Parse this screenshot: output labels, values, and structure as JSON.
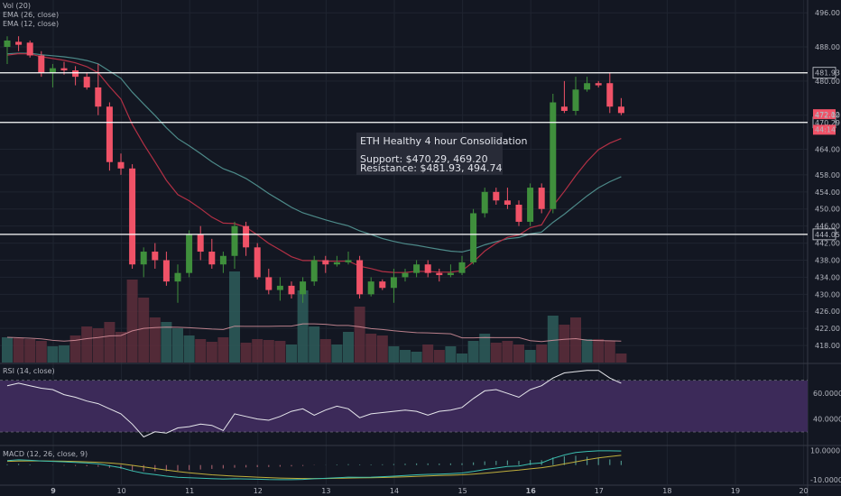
{
  "chart_data": {
    "type": "candlestick",
    "main": {
      "indicator_labels": [
        "Vol (20)",
        "EMA (26, close)",
        "EMA (12, close)"
      ],
      "y_ticks": [
        496.0,
        488.0,
        480.0,
        472.0,
        464.0,
        458.0,
        454.0,
        450.0,
        446.0,
        442.0,
        438.0,
        434.0,
        430.0,
        426.0,
        422.0,
        418.0
      ],
      "ylim": [
        414,
        499
      ],
      "up_color": "#3f8f3c",
      "down_color": "#f05267",
      "levels": [
        {
          "value": 481.93,
          "label": "481.93"
        },
        {
          "value": 470.29,
          "label": "470.29"
        },
        {
          "value": 444.05,
          "label": "444.05"
        }
      ],
      "price_tags": [
        {
          "value": 472.12,
          "label": "472.12",
          "color": "#f05267"
        },
        {
          "value": 470.8,
          "label": "44:14",
          "color": "#f05267"
        }
      ],
      "annotation": {
        "title": "ETH Healthy 4 hour Consolidation",
        "lines": [
          "Support: $470.29, 469.20",
          "Resistance: $481.93, 494.74"
        ]
      },
      "candles": [
        {
          "o": 488.0,
          "h": 490.5,
          "l": 484.0,
          "c": 489.5
        },
        {
          "o": 489.2,
          "h": 490.5,
          "l": 487.0,
          "c": 488.5
        },
        {
          "o": 489.0,
          "h": 489.5,
          "l": 485.5,
          "c": 486.0
        },
        {
          "o": 486.0,
          "h": 487.0,
          "l": 481.0,
          "c": 482.0
        },
        {
          "o": 482.0,
          "h": 484.0,
          "l": 478.5,
          "c": 483.0
        },
        {
          "o": 483.0,
          "h": 484.5,
          "l": 481.5,
          "c": 482.5
        },
        {
          "o": 482.5,
          "h": 483.5,
          "l": 479.0,
          "c": 481.0
        },
        {
          "o": 481.0,
          "h": 482.0,
          "l": 478.0,
          "c": 478.5
        },
        {
          "o": 478.5,
          "h": 484.0,
          "l": 472.0,
          "c": 474.0
        },
        {
          "o": 474.0,
          "h": 475.0,
          "l": 459.0,
          "c": 461.0
        },
        {
          "o": 461.0,
          "h": 463.0,
          "l": 458.0,
          "c": 459.5
        },
        {
          "o": 459.5,
          "h": 460.5,
          "l": 436.0,
          "c": 437.0
        },
        {
          "o": 437.0,
          "h": 441.0,
          "l": 434.0,
          "c": 440.0
        },
        {
          "o": 440.0,
          "h": 442.0,
          "l": 436.0,
          "c": 438.0
        },
        {
          "o": 438.0,
          "h": 440.0,
          "l": 432.0,
          "c": 433.0
        },
        {
          "o": 433.0,
          "h": 437.0,
          "l": 428.0,
          "c": 435.0
        },
        {
          "o": 435.0,
          "h": 445.0,
          "l": 434.0,
          "c": 444.0
        },
        {
          "o": 444.0,
          "h": 446.0,
          "l": 438.0,
          "c": 440.0
        },
        {
          "o": 440.0,
          "h": 443.0,
          "l": 436.0,
          "c": 437.0
        },
        {
          "o": 437.0,
          "h": 440.0,
          "l": 435.0,
          "c": 439.0
        },
        {
          "o": 439.0,
          "h": 447.0,
          "l": 436.0,
          "c": 446.0
        },
        {
          "o": 446.0,
          "h": 447.0,
          "l": 439.0,
          "c": 441.0
        },
        {
          "o": 441.0,
          "h": 442.0,
          "l": 433.5,
          "c": 434.0
        },
        {
          "o": 434.0,
          "h": 436.0,
          "l": 430.0,
          "c": 431.0
        },
        {
          "o": 431.0,
          "h": 434.0,
          "l": 428.5,
          "c": 432.0
        },
        {
          "o": 432.0,
          "h": 433.0,
          "l": 429.0,
          "c": 430.0
        },
        {
          "o": 430.0,
          "h": 434.0,
          "l": 428.0,
          "c": 433.0
        },
        {
          "o": 433.0,
          "h": 439.0,
          "l": 432.0,
          "c": 438.0
        },
        {
          "o": 438.0,
          "h": 439.0,
          "l": 435.0,
          "c": 437.0
        },
        {
          "o": 437.0,
          "h": 439.0,
          "l": 436.5,
          "c": 437.5
        },
        {
          "o": 437.5,
          "h": 440.0,
          "l": 437.0,
          "c": 438.0
        },
        {
          "o": 438.0,
          "h": 439.0,
          "l": 429.0,
          "c": 430.0
        },
        {
          "o": 430.0,
          "h": 434.0,
          "l": 429.5,
          "c": 433.0
        },
        {
          "o": 433.0,
          "h": 433.5,
          "l": 431.0,
          "c": 431.5
        },
        {
          "o": 431.5,
          "h": 436.0,
          "l": 428.0,
          "c": 434.0
        },
        {
          "o": 434.0,
          "h": 436.0,
          "l": 433.0,
          "c": 435.0
        },
        {
          "o": 435.0,
          "h": 438.0,
          "l": 434.0,
          "c": 437.0
        },
        {
          "o": 437.0,
          "h": 438.0,
          "l": 434.0,
          "c": 435.0
        },
        {
          "o": 435.0,
          "h": 436.0,
          "l": 433.0,
          "c": 434.5
        },
        {
          "o": 434.5,
          "h": 437.0,
          "l": 434.0,
          "c": 435.0
        },
        {
          "o": 435.0,
          "h": 439.0,
          "l": 434.5,
          "c": 437.5
        },
        {
          "o": 437.5,
          "h": 450.0,
          "l": 437.0,
          "c": 449.0
        },
        {
          "o": 449.0,
          "h": 455.0,
          "l": 448.0,
          "c": 454.0
        },
        {
          "o": 454.0,
          "h": 455.0,
          "l": 451.0,
          "c": 452.0
        },
        {
          "o": 452.0,
          "h": 455.0,
          "l": 450.0,
          "c": 451.0
        },
        {
          "o": 451.0,
          "h": 452.0,
          "l": 446.0,
          "c": 447.0
        },
        {
          "o": 447.0,
          "h": 456.0,
          "l": 446.0,
          "c": 455.0
        },
        {
          "o": 455.0,
          "h": 456.0,
          "l": 449.0,
          "c": 450.0
        },
        {
          "o": 450.0,
          "h": 477.0,
          "l": 449.0,
          "c": 475.0
        },
        {
          "o": 474.0,
          "h": 480.0,
          "l": 472.5,
          "c": 473.0
        },
        {
          "o": 473.0,
          "h": 481.0,
          "l": 472.0,
          "c": 478.0
        },
        {
          "o": 478.0,
          "h": 481.0,
          "l": 477.5,
          "c": 479.5
        },
        {
          "o": 479.5,
          "h": 480.0,
          "l": 478.5,
          "c": 479.0
        },
        {
          "o": 479.5,
          "h": 482.0,
          "l": 472.5,
          "c": 474.0
        },
        {
          "o": 474.0,
          "h": 476.0,
          "l": 472.0,
          "c": 472.5
        }
      ],
      "volume": [
        {
          "v": 28,
          "up": true
        },
        {
          "v": 27,
          "up": false
        },
        {
          "v": 26,
          "up": false
        },
        {
          "v": 24,
          "up": false
        },
        {
          "v": 18,
          "up": true
        },
        {
          "v": 19,
          "up": true
        },
        {
          "v": 30,
          "up": false
        },
        {
          "v": 40,
          "up": false
        },
        {
          "v": 38,
          "up": false
        },
        {
          "v": 45,
          "up": false
        },
        {
          "v": 34,
          "up": false
        },
        {
          "v": 92,
          "up": false
        },
        {
          "v": 72,
          "up": false
        },
        {
          "v": 50,
          "up": false
        },
        {
          "v": 45,
          "up": true
        },
        {
          "v": 38,
          "up": true
        },
        {
          "v": 30,
          "up": true
        },
        {
          "v": 26,
          "up": false
        },
        {
          "v": 23,
          "up": false
        },
        {
          "v": 28,
          "up": false
        },
        {
          "v": 101,
          "up": true
        },
        {
          "v": 22,
          "up": false
        },
        {
          "v": 26,
          "up": false
        },
        {
          "v": 25,
          "up": false
        },
        {
          "v": 24,
          "up": false
        },
        {
          "v": 20,
          "up": true
        },
        {
          "v": 80,
          "up": true
        },
        {
          "v": 40,
          "up": true
        },
        {
          "v": 26,
          "up": false
        },
        {
          "v": 20,
          "up": true
        },
        {
          "v": 34,
          "up": true
        },
        {
          "v": 62,
          "up": false
        },
        {
          "v": 32,
          "up": false
        },
        {
          "v": 30,
          "up": false
        },
        {
          "v": 18,
          "up": true
        },
        {
          "v": 14,
          "up": true
        },
        {
          "v": 12,
          "up": true
        },
        {
          "v": 20,
          "up": false
        },
        {
          "v": 14,
          "up": false
        },
        {
          "v": 18,
          "up": true
        },
        {
          "v": 10,
          "up": true
        },
        {
          "v": 24,
          "up": true
        },
        {
          "v": 32,
          "up": true
        },
        {
          "v": 22,
          "up": false
        },
        {
          "v": 24,
          "up": false
        },
        {
          "v": 20,
          "up": false
        },
        {
          "v": 14,
          "up": true
        },
        {
          "v": 20,
          "up": false
        },
        {
          "v": 52,
          "up": true
        },
        {
          "v": 42,
          "up": false
        },
        {
          "v": 50,
          "up": false
        },
        {
          "v": 26,
          "up": true
        },
        {
          "v": 26,
          "up": false
        },
        {
          "v": 24,
          "up": false
        },
        {
          "v": 10,
          "up": false
        }
      ],
      "vol_ma_color": "#e39aa5",
      "ema26_color": "#4d8a89",
      "ema12_color": "#b23045"
    },
    "rsi": {
      "label": "RSI (14, close)",
      "y_ticks": [
        60.0,
        40.0
      ],
      "tick_labels": [
        "60.0000",
        "40.0000"
      ],
      "ylim": [
        20,
        82
      ],
      "band": [
        30,
        70
      ],
      "band_color": "#3c2a59",
      "line_color": "#e6e7ec",
      "values": [
        66,
        68,
        66,
        64,
        63,
        59,
        57,
        54,
        52,
        48,
        44,
        36,
        26,
        30,
        29,
        33,
        34,
        36,
        35,
        31,
        44,
        42,
        40,
        39,
        42,
        46,
        48,
        43,
        47,
        50,
        48,
        41,
        44,
        45,
        46,
        47,
        46,
        43,
        46,
        47,
        49,
        56,
        62,
        63,
        60,
        57,
        63,
        66,
        72,
        76,
        77,
        78,
        78,
        72,
        68
      ]
    },
    "macd": {
      "label": "MACD (12, 26, close, 9)",
      "y_ticks": [
        10.0,
        -10.0
      ],
      "tick_labels": [
        "10.0000",
        "-10.0000"
      ],
      "ylim": [
        -13,
        12
      ],
      "macd_color": "#3bbfb0",
      "signal_color": "#bfae3c",
      "hist_color": "#8a8f9a",
      "macd": [
        3,
        3.5,
        3.2,
        2.8,
        2.5,
        2.2,
        1.8,
        1.4,
        0.8,
        -0.5,
        -1.8,
        -4,
        -5.5,
        -6.5,
        -7.5,
        -8.3,
        -8.6,
        -8.9,
        -9.2,
        -9.4,
        -9.3,
        -9.4,
        -9.6,
        -9.8,
        -9.9,
        -9.9,
        -9.7,
        -9.3,
        -9.0,
        -8.6,
        -8.2,
        -8.3,
        -8.2,
        -7.9,
        -7.5,
        -7.1,
        -6.6,
        -6.3,
        -6.1,
        -5.8,
        -5.4,
        -4.3,
        -3.0,
        -2.0,
        -1.0,
        -0.6,
        0.8,
        1.5,
        4.5,
        6.8,
        8.5,
        9.2,
        9.6,
        9.6,
        9.5
      ],
      "signal": [
        2.5,
        2.7,
        2.8,
        2.8,
        2.7,
        2.6,
        2.4,
        2.2,
        1.9,
        1.4,
        0.8,
        -0.2,
        -1.3,
        -2.3,
        -3.4,
        -4.4,
        -5.2,
        -5.9,
        -6.6,
        -7.1,
        -7.5,
        -7.8,
        -8.2,
        -8.5,
        -8.8,
        -9.0,
        -9.1,
        -9.1,
        -9.1,
        -9.0,
        -8.8,
        -8.7,
        -8.6,
        -8.4,
        -8.2,
        -8.0,
        -7.7,
        -7.4,
        -7.1,
        -6.9,
        -6.6,
        -6.1,
        -5.5,
        -4.8,
        -4.1,
        -3.4,
        -2.6,
        -1.8,
        -0.6,
        0.8,
        2.2,
        3.6,
        4.8,
        5.8,
        6.6
      ]
    },
    "x_ticks": [
      "9",
      "10",
      "11",
      "12",
      "13",
      "14",
      "15",
      "16",
      "17",
      "18",
      "19",
      "20"
    ],
    "x_tick_bold": [
      true,
      false,
      false,
      false,
      false,
      false,
      false,
      true,
      false,
      false,
      false,
      false
    ],
    "grid": true,
    "background": "#131722"
  }
}
